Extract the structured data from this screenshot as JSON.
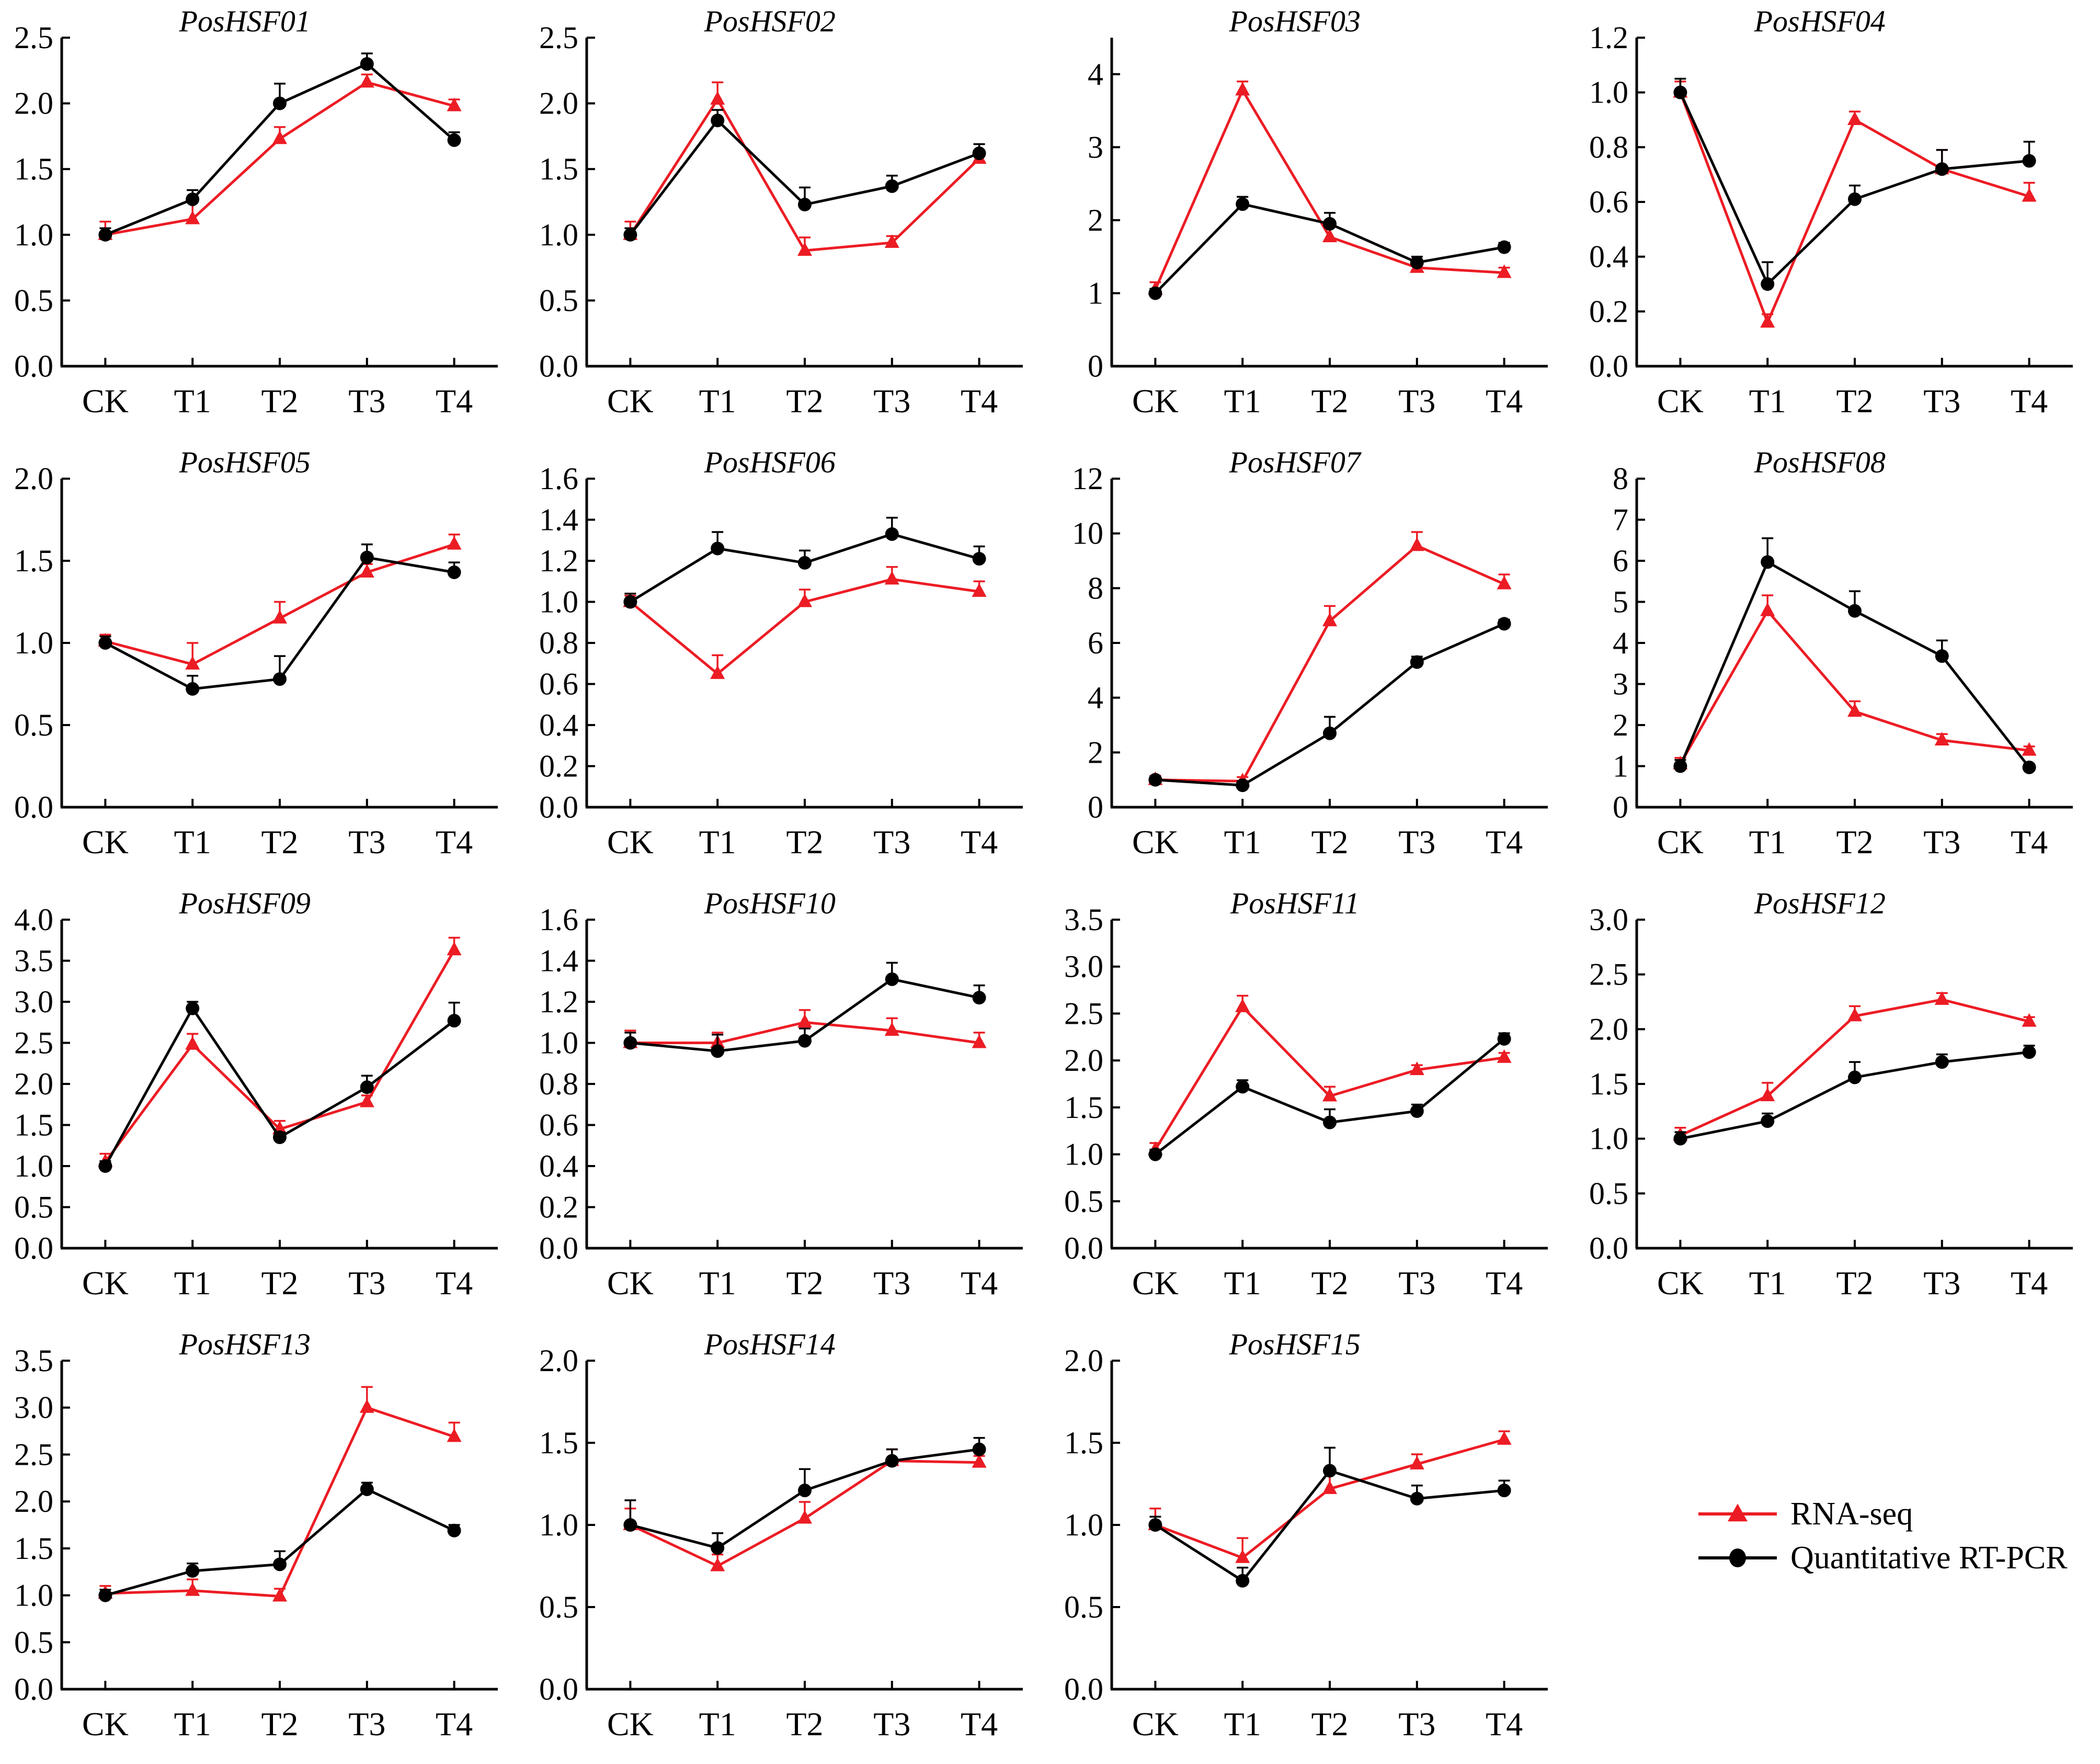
{
  "figure": {
    "background": "#ffffff",
    "series_colors": {
      "rna_seq": "#ec1c24",
      "rt_pcr": "#000000"
    }
  },
  "legend": {
    "entries": [
      {
        "label": "RNA-seq",
        "color": "#ec1c24",
        "marker": "triangle"
      },
      {
        "label": "Quantitative RT-PCR",
        "color": "#000000",
        "marker": "circle"
      }
    ]
  },
  "chart_data": [
    {
      "type": "line",
      "title": "PosHSF01",
      "categories": [
        "CK",
        "T1",
        "T2",
        "T3",
        "T4"
      ],
      "ylim": [
        0,
        2.5
      ],
      "ytick_step": 0.5,
      "decimals": 1,
      "grid": false,
      "series": [
        {
          "name": "RNA-seq",
          "color": "#ec1c24",
          "marker": "triangle",
          "values": [
            1.0,
            1.12,
            1.73,
            2.16,
            1.98
          ],
          "errors": [
            0.1,
            0.15,
            0.09,
            0.06,
            0.05
          ]
        },
        {
          "name": "Quantitative RT-PCR",
          "color": "#000000",
          "marker": "circle",
          "values": [
            1.0,
            1.27,
            2.0,
            2.3,
            1.72
          ],
          "errors": [
            0.05,
            0.07,
            0.15,
            0.08,
            0.06
          ]
        }
      ]
    },
    {
      "type": "line",
      "title": "PosHSF02",
      "categories": [
        "CK",
        "T1",
        "T2",
        "T3",
        "T4"
      ],
      "ylim": [
        0,
        2.5
      ],
      "ytick_step": 0.5,
      "decimals": 1,
      "grid": false,
      "series": [
        {
          "name": "RNA-seq",
          "color": "#ec1c24",
          "marker": "triangle",
          "values": [
            1.0,
            2.03,
            0.88,
            0.94,
            1.58
          ],
          "errors": [
            0.1,
            0.13,
            0.1,
            0.05,
            0.04
          ]
        },
        {
          "name": "Quantitative RT-PCR",
          "color": "#000000",
          "marker": "circle",
          "values": [
            1.0,
            1.87,
            1.23,
            1.37,
            1.62
          ],
          "errors": [
            0.05,
            0.08,
            0.13,
            0.08,
            0.07
          ]
        }
      ]
    },
    {
      "type": "line",
      "title": "PosHSF03",
      "categories": [
        "CK",
        "T1",
        "T2",
        "T3",
        "T4"
      ],
      "ylim": [
        0,
        4.5
      ],
      "ytick_max": 4,
      "ytick_step": 1,
      "decimals": 0,
      "grid": false,
      "series": [
        {
          "name": "RNA-seq",
          "color": "#ec1c24",
          "marker": "triangle",
          "values": [
            1.05,
            3.78,
            1.77,
            1.35,
            1.28
          ],
          "errors": [
            0.1,
            0.12,
            0.15,
            0.08,
            0.07
          ]
        },
        {
          "name": "Quantitative RT-PCR",
          "color": "#000000",
          "marker": "circle",
          "values": [
            1.0,
            2.22,
            1.95,
            1.42,
            1.63
          ],
          "errors": [
            0.06,
            0.1,
            0.15,
            0.08,
            0.06
          ]
        }
      ]
    },
    {
      "type": "line",
      "title": "PosHSF04",
      "categories": [
        "CK",
        "T1",
        "T2",
        "T3",
        "T4"
      ],
      "ylim": [
        0,
        1.2
      ],
      "ytick_step": 0.2,
      "decimals": 1,
      "grid": false,
      "series": [
        {
          "name": "RNA-seq",
          "color": "#ec1c24",
          "marker": "triangle",
          "values": [
            1.0,
            0.16,
            0.9,
            0.72,
            0.62
          ],
          "errors": [
            0.04,
            0.03,
            0.03,
            0.07,
            0.05
          ]
        },
        {
          "name": "Quantitative RT-PCR",
          "color": "#000000",
          "marker": "circle",
          "values": [
            1.0,
            0.3,
            0.61,
            0.72,
            0.75
          ],
          "errors": [
            0.05,
            0.08,
            0.05,
            0.07,
            0.07
          ]
        }
      ]
    },
    {
      "type": "line",
      "title": "PosHSF05",
      "categories": [
        "CK",
        "T1",
        "T2",
        "T3",
        "T4"
      ],
      "ylim": [
        0,
        2.0
      ],
      "ytick_step": 0.5,
      "decimals": 1,
      "grid": false,
      "series": [
        {
          "name": "RNA-seq",
          "color": "#ec1c24",
          "marker": "triangle",
          "values": [
            1.01,
            0.87,
            1.15,
            1.43,
            1.6
          ],
          "errors": [
            0.04,
            0.13,
            0.1,
            0.05,
            0.06
          ]
        },
        {
          "name": "Quantitative RT-PCR",
          "color": "#000000",
          "marker": "circle",
          "values": [
            1.0,
            0.72,
            0.78,
            1.52,
            1.43
          ],
          "errors": [
            0.04,
            0.08,
            0.14,
            0.08,
            0.06
          ]
        }
      ]
    },
    {
      "type": "line",
      "title": "PosHSF06",
      "categories": [
        "CK",
        "T1",
        "T2",
        "T3",
        "T4"
      ],
      "ylim": [
        0,
        1.6
      ],
      "ytick_step": 0.2,
      "decimals": 1,
      "grid": false,
      "series": [
        {
          "name": "RNA-seq",
          "color": "#ec1c24",
          "marker": "triangle",
          "values": [
            1.0,
            0.65,
            1.0,
            1.11,
            1.05
          ],
          "errors": [
            0.03,
            0.09,
            0.06,
            0.06,
            0.05
          ]
        },
        {
          "name": "Quantitative RT-PCR",
          "color": "#000000",
          "marker": "circle",
          "values": [
            1.0,
            1.26,
            1.19,
            1.33,
            1.21
          ],
          "errors": [
            0.04,
            0.08,
            0.06,
            0.08,
            0.06
          ]
        }
      ]
    },
    {
      "type": "line",
      "title": "PosHSF07",
      "categories": [
        "CK",
        "T1",
        "T2",
        "T3",
        "T4"
      ],
      "ylim": [
        0,
        12
      ],
      "ytick_step": 2,
      "decimals": 0,
      "grid": false,
      "series": [
        {
          "name": "RNA-seq",
          "color": "#ec1c24",
          "marker": "triangle",
          "values": [
            1.0,
            0.95,
            6.8,
            9.55,
            8.15
          ],
          "errors": [
            0.15,
            0.15,
            0.55,
            0.5,
            0.35
          ]
        },
        {
          "name": "Quantitative RT-PCR",
          "color": "#000000",
          "marker": "circle",
          "values": [
            1.0,
            0.8,
            2.7,
            5.3,
            6.7
          ],
          "errors": [
            0.1,
            0.15,
            0.6,
            0.2,
            0.15
          ]
        }
      ]
    },
    {
      "type": "line",
      "title": "PosHSF08",
      "categories": [
        "CK",
        "T1",
        "T2",
        "T3",
        "T4"
      ],
      "ylim": [
        0,
        8
      ],
      "ytick_step": 1,
      "decimals": 0,
      "grid": false,
      "series": [
        {
          "name": "RNA-seq",
          "color": "#ec1c24",
          "marker": "triangle",
          "values": [
            1.05,
            4.78,
            2.33,
            1.63,
            1.38
          ],
          "errors": [
            0.15,
            0.38,
            0.25,
            0.15,
            0.1
          ]
        },
        {
          "name": "Quantitative RT-PCR",
          "color": "#000000",
          "marker": "circle",
          "values": [
            1.0,
            5.97,
            4.78,
            3.68,
            0.97
          ],
          "errors": [
            0.15,
            0.58,
            0.48,
            0.38,
            0.08
          ]
        }
      ]
    },
    {
      "type": "line",
      "title": "PosHSF09",
      "categories": [
        "CK",
        "T1",
        "T2",
        "T3",
        "T4"
      ],
      "ylim": [
        0,
        4.0
      ],
      "ytick_step": 0.5,
      "decimals": 1,
      "grid": false,
      "series": [
        {
          "name": "RNA-seq",
          "color": "#ec1c24",
          "marker": "triangle",
          "values": [
            1.05,
            2.48,
            1.45,
            1.78,
            3.63
          ],
          "errors": [
            0.1,
            0.13,
            0.1,
            0.08,
            0.15
          ]
        },
        {
          "name": "Quantitative RT-PCR",
          "color": "#000000",
          "marker": "circle",
          "values": [
            1.0,
            2.92,
            1.35,
            1.96,
            2.77
          ],
          "errors": [
            0.06,
            0.08,
            0.06,
            0.14,
            0.22
          ]
        }
      ]
    },
    {
      "type": "line",
      "title": "PosHSF10",
      "categories": [
        "CK",
        "T1",
        "T2",
        "T3",
        "T4"
      ],
      "ylim": [
        0,
        1.6
      ],
      "ytick_step": 0.2,
      "decimals": 1,
      "grid": false,
      "series": [
        {
          "name": "RNA-seq",
          "color": "#ec1c24",
          "marker": "triangle",
          "values": [
            1.0,
            1.0,
            1.1,
            1.06,
            1.0
          ],
          "errors": [
            0.06,
            0.05,
            0.06,
            0.06,
            0.05
          ]
        },
        {
          "name": "Quantitative RT-PCR",
          "color": "#000000",
          "marker": "circle",
          "values": [
            1.0,
            0.96,
            1.01,
            1.31,
            1.22
          ],
          "errors": [
            0.05,
            0.08,
            0.06,
            0.08,
            0.06
          ]
        }
      ]
    },
    {
      "type": "line",
      "title": "PosHSF11",
      "categories": [
        "CK",
        "T1",
        "T2",
        "T3",
        "T4"
      ],
      "ylim": [
        0,
        3.5
      ],
      "ytick_step": 0.5,
      "decimals": 1,
      "grid": false,
      "series": [
        {
          "name": "RNA-seq",
          "color": "#ec1c24",
          "marker": "triangle",
          "values": [
            1.05,
            2.57,
            1.62,
            1.9,
            2.03
          ],
          "errors": [
            0.07,
            0.12,
            0.1,
            0.05,
            0.05
          ]
        },
        {
          "name": "Quantitative RT-PCR",
          "color": "#000000",
          "marker": "circle",
          "values": [
            1.0,
            1.72,
            1.34,
            1.46,
            2.23
          ],
          "errors": [
            0.05,
            0.07,
            0.14,
            0.07,
            0.06
          ]
        }
      ]
    },
    {
      "type": "line",
      "title": "PosHSF12",
      "categories": [
        "CK",
        "T1",
        "T2",
        "T3",
        "T4"
      ],
      "ylim": [
        0,
        3.0
      ],
      "ytick_step": 0.5,
      "decimals": 1,
      "grid": false,
      "series": [
        {
          "name": "RNA-seq",
          "color": "#ec1c24",
          "marker": "triangle",
          "values": [
            1.03,
            1.39,
            2.12,
            2.27,
            2.07
          ],
          "errors": [
            0.07,
            0.12,
            0.09,
            0.06,
            0.04
          ]
        },
        {
          "name": "Quantitative RT-PCR",
          "color": "#000000",
          "marker": "circle",
          "values": [
            1.0,
            1.16,
            1.56,
            1.7,
            1.79
          ],
          "errors": [
            0.06,
            0.07,
            0.14,
            0.07,
            0.06
          ]
        }
      ]
    },
    {
      "type": "line",
      "title": "PosHSF13",
      "categories": [
        "CK",
        "T1",
        "T2",
        "T3",
        "T4"
      ],
      "ylim": [
        0,
        3.5
      ],
      "ytick_step": 0.5,
      "decimals": 1,
      "grid": false,
      "series": [
        {
          "name": "RNA-seq",
          "color": "#ec1c24",
          "marker": "triangle",
          "values": [
            1.02,
            1.05,
            0.99,
            3.0,
            2.69
          ],
          "errors": [
            0.08,
            0.12,
            0.08,
            0.22,
            0.15
          ]
        },
        {
          "name": "Quantitative RT-PCR",
          "color": "#000000",
          "marker": "circle",
          "values": [
            1.0,
            1.26,
            1.33,
            2.13,
            1.69
          ],
          "errors": [
            0.06,
            0.08,
            0.14,
            0.07,
            0.06
          ]
        }
      ]
    },
    {
      "type": "line",
      "title": "PosHSF14",
      "categories": [
        "CK",
        "T1",
        "T2",
        "T3",
        "T4"
      ],
      "ylim": [
        0,
        2.0
      ],
      "ytick_step": 0.5,
      "decimals": 1,
      "grid": false,
      "series": [
        {
          "name": "RNA-seq",
          "color": "#ec1c24",
          "marker": "triangle",
          "values": [
            1.0,
            0.75,
            1.04,
            1.39,
            1.38
          ],
          "errors": [
            0.1,
            0.07,
            0.1,
            0.07,
            0.04
          ]
        },
        {
          "name": "Quantitative RT-PCR",
          "color": "#000000",
          "marker": "circle",
          "values": [
            1.0,
            0.86,
            1.21,
            1.39,
            1.46
          ],
          "errors": [
            0.15,
            0.09,
            0.13,
            0.07,
            0.07
          ]
        }
      ]
    },
    {
      "type": "line",
      "title": "PosHSF15",
      "categories": [
        "CK",
        "T1",
        "T2",
        "T3",
        "T4"
      ],
      "ylim": [
        0,
        2.0
      ],
      "ytick_step": 0.5,
      "decimals": 1,
      "grid": false,
      "series": [
        {
          "name": "RNA-seq",
          "color": "#ec1c24",
          "marker": "triangle",
          "values": [
            1.0,
            0.8,
            1.22,
            1.37,
            1.52
          ],
          "errors": [
            0.1,
            0.12,
            0.12,
            0.06,
            0.05
          ]
        },
        {
          "name": "Quantitative RT-PCR",
          "color": "#000000",
          "marker": "circle",
          "values": [
            1.0,
            0.66,
            1.33,
            1.16,
            1.21
          ],
          "errors": [
            0.05,
            0.08,
            0.14,
            0.08,
            0.06
          ]
        }
      ]
    }
  ]
}
